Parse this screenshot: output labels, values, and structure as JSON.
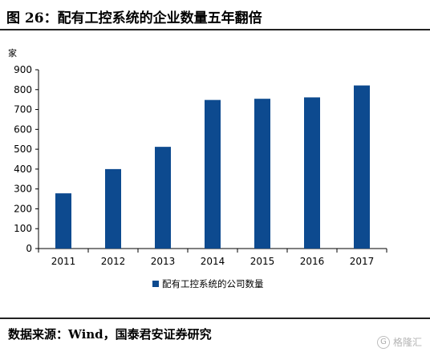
{
  "header": {
    "title": "图 26：配有工控系统的企业数量五年翻倍"
  },
  "chart_data": {
    "type": "bar",
    "title": "",
    "ylabel": "家",
    "xlabel": "",
    "categories": [
      "2011",
      "2012",
      "2013",
      "2014",
      "2015",
      "2016",
      "2017"
    ],
    "series": [
      {
        "name": "配有工控系统的公司数量",
        "values": [
          278,
          400,
          512,
          748,
          754,
          761,
          821
        ]
      }
    ],
    "yticks": [
      0,
      100,
      200,
      300,
      400,
      500,
      600,
      700,
      800,
      900
    ],
    "ylim": [
      0,
      900
    ],
    "grid": false,
    "legend": "bottom",
    "bar_color": "#0d4a8f"
  },
  "footer": {
    "source": "数据来源：Wind，国泰君安证券研究",
    "watermark_text": "格隆汇",
    "watermark_icon": "gelonghui-logo-icon"
  }
}
